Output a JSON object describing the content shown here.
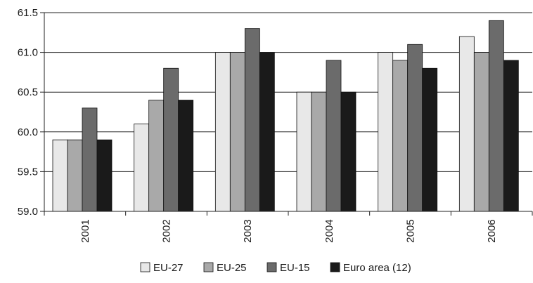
{
  "chart_data": {
    "type": "bar",
    "title": "",
    "xlabel": "",
    "ylabel": "",
    "categories": [
      "2001",
      "2002",
      "2003",
      "2004",
      "2005",
      "2006"
    ],
    "series": [
      {
        "name": "EU-27",
        "color": "#e8e8e8",
        "values": [
          59.9,
          60.1,
          61.0,
          60.5,
          61.0,
          61.2
        ]
      },
      {
        "name": "EU-25",
        "color": "#a9a9a9",
        "values": [
          59.9,
          60.4,
          61.0,
          60.5,
          60.9,
          61.0
        ]
      },
      {
        "name": "EU-15",
        "color": "#6b6b6b",
        "values": [
          60.3,
          60.8,
          61.3,
          60.9,
          61.1,
          61.4
        ]
      },
      {
        "name": "Euro area (12)",
        "color": "#1a1a1a",
        "values": [
          59.9,
          60.4,
          61.0,
          60.5,
          60.8,
          60.9
        ]
      }
    ],
    "ylim": [
      59.0,
      61.5
    ],
    "yticks": [
      "59.0",
      "59.5",
      "60.0",
      "60.5",
      "61.0",
      "61.5"
    ],
    "grid": true,
    "legend_position": "bottom-center",
    "x_tick_rotation": "vertical"
  }
}
